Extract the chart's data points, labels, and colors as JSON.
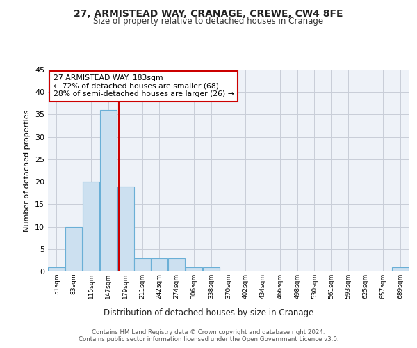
{
  "title1": "27, ARMISTEAD WAY, CRANAGE, CREWE, CW4 8FE",
  "title2": "Size of property relative to detached houses in Cranage",
  "xlabel": "Distribution of detached houses by size in Cranage",
  "ylabel": "Number of detached properties",
  "bin_labels": [
    "51sqm",
    "83sqm",
    "115sqm",
    "147sqm",
    "179sqm",
    "211sqm",
    "242sqm",
    "274sqm",
    "306sqm",
    "338sqm",
    "370sqm",
    "402sqm",
    "434sqm",
    "466sqm",
    "498sqm",
    "530sqm",
    "561sqm",
    "593sqm",
    "625sqm",
    "657sqm",
    "689sqm"
  ],
  "bar_values": [
    1,
    10,
    20,
    36,
    19,
    3,
    3,
    3,
    1,
    1,
    0,
    0,
    0,
    0,
    0,
    0,
    0,
    0,
    0,
    0,
    1
  ],
  "bar_color": "#cce0f0",
  "bar_edgecolor": "#6aafd6",
  "vline_x": 183,
  "bin_edges": [
    51,
    83,
    115,
    147,
    179,
    211,
    242,
    274,
    306,
    338,
    370,
    402,
    434,
    466,
    498,
    530,
    561,
    593,
    625,
    657,
    689,
    721
  ],
  "ylim": [
    0,
    45
  ],
  "yticks": [
    0,
    5,
    10,
    15,
    20,
    25,
    30,
    35,
    40,
    45
  ],
  "annotation_text": "27 ARMISTEAD WAY: 183sqm\n← 72% of detached houses are smaller (68)\n28% of semi-detached houses are larger (26) →",
  "vline_color": "#cc0000",
  "annotation_box_color": "#ffffff",
  "annotation_box_edgecolor": "#cc0000",
  "footer_text": "Contains HM Land Registry data © Crown copyright and database right 2024.\nContains public sector information licensed under the Open Government Licence v3.0.",
  "bg_color": "#eef2f8"
}
